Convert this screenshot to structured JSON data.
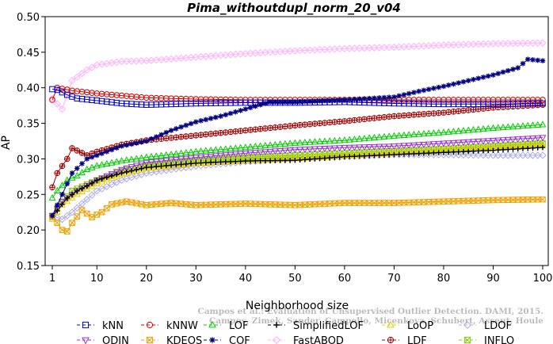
{
  "chart_data": {
    "type": "line",
    "title": "Pima_withoutdupl_norm_20_v04",
    "xlabel": "Neighborhood size",
    "ylabel": "AP",
    "xlim": [
      1,
      100
    ],
    "ylim": [
      0.15,
      0.5
    ],
    "xticks": [
      1,
      10,
      20,
      30,
      40,
      50,
      60,
      70,
      80,
      90,
      100
    ],
    "yticks": [
      "0.15",
      "0.20",
      "0.25",
      "0.30",
      "0.35",
      "0.40",
      "0.45",
      "0.50"
    ],
    "grid": false,
    "legend_position": "bottom",
    "watermark": [
      "Campos et al.: Evaluation of Unsupervised Outlier Detection. DAMI, 2015.",
      "Campos, Zimek, Sander, Campello, Micenkova, Schubert, Assent, Houle"
    ],
    "series": [
      {
        "name": "kNN",
        "color": "#0000cc",
        "marker": "square",
        "points": [
          [
            1,
            0.398
          ],
          [
            2,
            0.397
          ],
          [
            4,
            0.39
          ],
          [
            6,
            0.385
          ],
          [
            10,
            0.382
          ],
          [
            15,
            0.378
          ],
          [
            20,
            0.376
          ],
          [
            30,
            0.378
          ],
          [
            40,
            0.379
          ],
          [
            50,
            0.379
          ],
          [
            60,
            0.38
          ],
          [
            70,
            0.378
          ],
          [
            80,
            0.377
          ],
          [
            90,
            0.377
          ],
          [
            100,
            0.378
          ]
        ]
      },
      {
        "name": "kNNW",
        "color": "#cc0000",
        "marker": "circle",
        "points": [
          [
            1,
            0.383
          ],
          [
            2,
            0.4
          ],
          [
            5,
            0.396
          ],
          [
            10,
            0.392
          ],
          [
            20,
            0.386
          ],
          [
            30,
            0.384
          ],
          [
            40,
            0.383
          ],
          [
            50,
            0.383
          ],
          [
            60,
            0.383
          ],
          [
            70,
            0.383
          ],
          [
            80,
            0.383
          ],
          [
            90,
            0.383
          ],
          [
            100,
            0.383
          ]
        ]
      },
      {
        "name": "LOF",
        "color": "#00cc00",
        "marker": "triangle-up",
        "points": [
          [
            1,
            0.245
          ],
          [
            2,
            0.255
          ],
          [
            4,
            0.27
          ],
          [
            6,
            0.276
          ],
          [
            8,
            0.285
          ],
          [
            10,
            0.29
          ],
          [
            15,
            0.297
          ],
          [
            20,
            0.302
          ],
          [
            30,
            0.31
          ],
          [
            40,
            0.316
          ],
          [
            50,
            0.322
          ],
          [
            60,
            0.326
          ],
          [
            70,
            0.332
          ],
          [
            80,
            0.337
          ],
          [
            90,
            0.343
          ],
          [
            100,
            0.348
          ]
        ]
      },
      {
        "name": "SimplifiedLOF",
        "color": "#000000",
        "marker": "plus",
        "points": [
          [
            1,
            0.22
          ],
          [
            2,
            0.227
          ],
          [
            4,
            0.245
          ],
          [
            6,
            0.255
          ],
          [
            8,
            0.262
          ],
          [
            10,
            0.27
          ],
          [
            15,
            0.28
          ],
          [
            20,
            0.288
          ],
          [
            30,
            0.294
          ],
          [
            40,
            0.297
          ],
          [
            50,
            0.298
          ],
          [
            60,
            0.303
          ],
          [
            70,
            0.306
          ],
          [
            80,
            0.309
          ],
          [
            90,
            0.312
          ],
          [
            100,
            0.316
          ]
        ]
      },
      {
        "name": "LoOP",
        "color": "#e6cc00",
        "marker": "triangle-up",
        "points": [
          [
            1,
            0.215
          ],
          [
            3,
            0.235
          ],
          [
            6,
            0.25
          ],
          [
            10,
            0.265
          ],
          [
            15,
            0.278
          ],
          [
            20,
            0.286
          ],
          [
            30,
            0.293
          ],
          [
            40,
            0.297
          ],
          [
            50,
            0.3
          ],
          [
            60,
            0.304
          ],
          [
            70,
            0.308
          ],
          [
            80,
            0.312
          ],
          [
            90,
            0.316
          ],
          [
            100,
            0.32
          ]
        ]
      },
      {
        "name": "LDOF",
        "color": "#aaaaee",
        "marker": "diamond",
        "points": [
          [
            1,
            0.22
          ],
          [
            3,
            0.215
          ],
          [
            5,
            0.225
          ],
          [
            10,
            0.255
          ],
          [
            15,
            0.27
          ],
          [
            20,
            0.28
          ],
          [
            30,
            0.29
          ],
          [
            40,
            0.296
          ],
          [
            50,
            0.3
          ],
          [
            60,
            0.303
          ],
          [
            70,
            0.306
          ],
          [
            80,
            0.306
          ],
          [
            90,
            0.305
          ],
          [
            100,
            0.305
          ]
        ]
      },
      {
        "name": "ODIN",
        "color": "#9933cc",
        "marker": "triangle-down",
        "points": [
          [
            1,
            0.22
          ],
          [
            3,
            0.24
          ],
          [
            6,
            0.255
          ],
          [
            10,
            0.27
          ],
          [
            15,
            0.285
          ],
          [
            20,
            0.295
          ],
          [
            30,
            0.302
          ],
          [
            40,
            0.308
          ],
          [
            50,
            0.313
          ],
          [
            60,
            0.316
          ],
          [
            70,
            0.318
          ],
          [
            80,
            0.322
          ],
          [
            90,
            0.326
          ],
          [
            100,
            0.33
          ]
        ]
      },
      {
        "name": "KDEOS",
        "color": "#f0a000",
        "marker": "square-x",
        "points": [
          [
            1,
            0.218
          ],
          [
            2,
            0.21
          ],
          [
            3,
            0.2
          ],
          [
            4,
            0.198
          ],
          [
            5,
            0.21
          ],
          [
            7,
            0.228
          ],
          [
            9,
            0.218
          ],
          [
            11,
            0.225
          ],
          [
            13,
            0.236
          ],
          [
            16,
            0.24
          ],
          [
            20,
            0.235
          ],
          [
            25,
            0.238
          ],
          [
            30,
            0.235
          ],
          [
            40,
            0.237
          ],
          [
            50,
            0.235
          ],
          [
            60,
            0.238
          ],
          [
            70,
            0.238
          ],
          [
            80,
            0.24
          ],
          [
            90,
            0.242
          ],
          [
            100,
            0.243
          ]
        ]
      },
      {
        "name": "COF",
        "color": "#000080",
        "marker": "star",
        "points": [
          [
            1,
            0.22
          ],
          [
            3,
            0.25
          ],
          [
            5,
            0.28
          ],
          [
            8,
            0.3
          ],
          [
            10,
            0.305
          ],
          [
            15,
            0.318
          ],
          [
            20,
            0.325
          ],
          [
            25,
            0.34
          ],
          [
            30,
            0.352
          ],
          [
            35,
            0.36
          ],
          [
            40,
            0.37
          ],
          [
            45,
            0.38
          ],
          [
            50,
            0.38
          ],
          [
            60,
            0.383
          ],
          [
            70,
            0.387
          ],
          [
            75,
            0.395
          ],
          [
            80,
            0.402
          ],
          [
            85,
            0.41
          ],
          [
            90,
            0.418
          ],
          [
            95,
            0.428
          ],
          [
            97,
            0.44
          ],
          [
            100,
            0.438
          ]
        ]
      },
      {
        "name": "FastABOD",
        "color": "#ffb0ff",
        "marker": "diamond",
        "points": [
          [
            1,
            0.385
          ],
          [
            3,
            0.37
          ],
          [
            5,
            0.41
          ],
          [
            8,
            0.425
          ],
          [
            10,
            0.432
          ],
          [
            15,
            0.437
          ],
          [
            20,
            0.438
          ],
          [
            30,
            0.443
          ],
          [
            40,
            0.448
          ],
          [
            50,
            0.452
          ],
          [
            60,
            0.455
          ],
          [
            70,
            0.457
          ],
          [
            80,
            0.46
          ],
          [
            90,
            0.462
          ],
          [
            100,
            0.463
          ]
        ]
      },
      {
        "name": "LDF",
        "color": "#a00000",
        "marker": "circle-plus",
        "points": [
          [
            1,
            0.26
          ],
          [
            2,
            0.28
          ],
          [
            4,
            0.3
          ],
          [
            5,
            0.315
          ],
          [
            8,
            0.305
          ],
          [
            10,
            0.31
          ],
          [
            15,
            0.32
          ],
          [
            20,
            0.326
          ],
          [
            30,
            0.333
          ],
          [
            40,
            0.34
          ],
          [
            50,
            0.347
          ],
          [
            60,
            0.353
          ],
          [
            70,
            0.36
          ],
          [
            80,
            0.365
          ],
          [
            90,
            0.372
          ],
          [
            100,
            0.376
          ]
        ]
      },
      {
        "name": "INFLO",
        "color": "#88cc00",
        "marker": "square-x",
        "points": [
          [
            1,
            0.22
          ],
          [
            3,
            0.24
          ],
          [
            5,
            0.255
          ],
          [
            10,
            0.27
          ],
          [
            15,
            0.283
          ],
          [
            20,
            0.29
          ],
          [
            30,
            0.297
          ],
          [
            40,
            0.302
          ],
          [
            50,
            0.305
          ],
          [
            60,
            0.308
          ],
          [
            70,
            0.311
          ],
          [
            80,
            0.314
          ],
          [
            90,
            0.318
          ],
          [
            100,
            0.322
          ]
        ]
      }
    ]
  }
}
